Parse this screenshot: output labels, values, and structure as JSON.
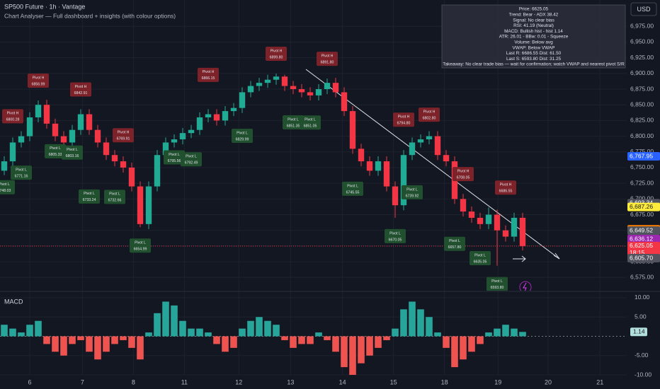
{
  "header": {
    "title": "SP500 Future · 1h · Vantage",
    "subtitle": "Chart Analyser — Full dashboard + insights (with colour options)",
    "currency": "USD"
  },
  "info_box": [
    "Price: 6625.05",
    "Trend: Bear - ADX 38.42",
    "Signal: No clear bias",
    "RSI: 41.19 (Neutral)",
    "MACD: Bullish hist - hist 1.14",
    "ATR: 26.01 - BBw: 0.01 - Squeeze",
    "Volume: Below avg",
    "VWAP: Below VWAP",
    "Last R: 6686.55 Dist: 61.50",
    "Last S: 6593.80 Dist: 31.25",
    "Takeaway: No clear trade bias — wait for confirmation; watch VWAP and nearest pivot S/R"
  ],
  "chart_data": [
    {
      "type": "candlestick",
      "grid": true,
      "up_color": "#22ab94",
      "down_color": "#f23645",
      "pivot_high_color": "#7e2229",
      "pivot_low_color": "#21502e",
      "xlim": [
        -0.5,
        73.25
      ],
      "xticks": [
        {
          "value": 3,
          "label": "6"
        },
        {
          "value": 9.2,
          "label": "7"
        },
        {
          "value": 15.2,
          "label": "8"
        },
        {
          "value": 21.2,
          "label": "11"
        },
        {
          "value": 27.6,
          "label": "12"
        },
        {
          "value": 33.7,
          "label": "13"
        },
        {
          "value": 39.8,
          "label": "14"
        },
        {
          "value": 45.8,
          "label": "15"
        },
        {
          "value": 51.8,
          "label": "18"
        },
        {
          "value": 58.1,
          "label": "19"
        },
        {
          "value": 64,
          "label": "20"
        },
        {
          "value": 70.1,
          "label": "21"
        }
      ],
      "ylim": [
        6555,
        7017
      ],
      "yticks": [
        {
          "value": 6575,
          "label": "6,575.00"
        },
        {
          "value": 6600,
          "label": "6,600.00"
        },
        {
          "value": 6625,
          "label": "6,625.00"
        },
        {
          "value": 6650,
          "label": "6,650.00"
        },
        {
          "value": 6675,
          "label": "6,675.00"
        },
        {
          "value": 6700,
          "label": "6,700.00"
        },
        {
          "value": 6725,
          "label": "6,725.00"
        },
        {
          "value": 6750,
          "label": "6,750.00"
        },
        {
          "value": 6775,
          "label": "6,775.00"
        },
        {
          "value": 6800,
          "label": "6,800.00"
        },
        {
          "value": 6825,
          "label": "6,825.00"
        },
        {
          "value": 6850,
          "label": "6,850.00"
        },
        {
          "value": 6875,
          "label": "6,875.00"
        },
        {
          "value": 6900,
          "label": "6,900.00"
        },
        {
          "value": 6925,
          "label": "6,925.00"
        },
        {
          "value": 6950,
          "label": "6,950.00"
        },
        {
          "value": 6975,
          "label": "6,975.00"
        }
      ],
      "open": [
        6745,
        6760,
        6790,
        6800,
        6830,
        6850,
        6820,
        6800,
        6790,
        6810,
        6835,
        6810,
        6790,
        6770,
        6760,
        6750,
        6720,
        6660,
        6720,
        6770,
        6790,
        6795,
        6805,
        6810,
        6830,
        6835,
        6825,
        6840,
        6845,
        6870,
        6880,
        6885,
        6890,
        6895,
        6880,
        6875,
        6870,
        6865,
        6875,
        6885,
        6870,
        6840,
        6780,
        6760,
        6745,
        6760,
        6720,
        6690,
        6770,
        6790,
        6795,
        6800,
        6770,
        6760,
        6700,
        6680,
        6670,
        6660,
        6675,
        6650,
        6640,
        6670
      ],
      "high": [
        6768,
        6798,
        6808,
        6838,
        6856.99,
        6858,
        6828,
        6808,
        6818,
        6842.91,
        6843,
        6818,
        6798,
        6778,
        6768,
        6758,
        6728,
        6728,
        6778,
        6798,
        6803,
        6813,
        6818,
        6838,
        6843,
        6843,
        6848,
        6853,
        6878,
        6888,
        6893,
        6898,
        6899.8,
        6898,
        6888,
        6883,
        6878,
        6883,
        6891.8,
        6893,
        6878,
        6848,
        6788,
        6768,
        6768,
        6768,
        6728,
        6778,
        6798,
        6803,
        6808,
        6808,
        6778,
        6768,
        6708,
        6688,
        6678,
        6686.55,
        6683,
        6658,
        6678,
        6678
      ],
      "low": [
        6738,
        6752,
        6782,
        6792,
        6822,
        6812,
        6792,
        6782,
        6782,
        6802,
        6802,
        6782,
        6762,
        6752,
        6742,
        6712,
        6654.99,
        6652,
        6712,
        6762,
        6782,
        6787,
        6797,
        6802,
        6822,
        6817,
        6817,
        6832,
        6837,
        6862,
        6872,
        6877,
        6882,
        6872,
        6867,
        6862,
        6857,
        6857,
        6867,
        6862,
        6832,
        6772,
        6752,
        6737,
        6737,
        6712,
        6670.05,
        6682,
        6762,
        6782,
        6787,
        6762,
        6752,
        6692,
        6672,
        6662,
        6652,
        6652,
        6593.8,
        6632,
        6632,
        6618
      ],
      "close": [
        6760,
        6790,
        6800,
        6830,
        6850,
        6820,
        6800,
        6790,
        6810,
        6835,
        6810,
        6790,
        6770,
        6760,
        6750,
        6720,
        6660,
        6720,
        6770,
        6790,
        6795,
        6805,
        6810,
        6830,
        6835,
        6825,
        6840,
        6845,
        6870,
        6880,
        6885,
        6890,
        6895,
        6880,
        6875,
        6870,
        6865,
        6875,
        6885,
        6870,
        6840,
        6780,
        6760,
        6745,
        6760,
        6720,
        6690,
        6770,
        6790,
        6795,
        6800,
        6770,
        6760,
        6700,
        6680,
        6670,
        6660,
        6675,
        6650,
        6640,
        6670,
        6625.05
      ],
      "pivots": [
        {
          "label": "Pivot L",
          "value": 6748.03,
          "value_label": "6748.03",
          "x": 0
        },
        {
          "label": "Pivot H",
          "value": 6800.28,
          "value_label": "6800.28",
          "x": 1
        },
        {
          "label": "Pivot L",
          "value": 6771.16,
          "value_label": "6771.16",
          "x": 2
        },
        {
          "label": "Pivot H",
          "value": 6856.99,
          "value_label": "6856.99",
          "x": 4
        },
        {
          "label": "Pivot L",
          "value": 6805.33,
          "value_label": "6805.33",
          "x": 6
        },
        {
          "label": "Pivot L",
          "value": 6803.16,
          "value_label": "6803.16",
          "x": 8
        },
        {
          "label": "Pivot H",
          "value": 6842.91,
          "value_label": "6842.91",
          "x": 9
        },
        {
          "label": "Pivot L",
          "value": 6733.24,
          "value_label": "6733.24",
          "x": 10
        },
        {
          "label": "Pivot L",
          "value": 6732.66,
          "value_label": "6732.66",
          "x": 13
        },
        {
          "label": "Pivot H",
          "value": 6769.91,
          "value_label": "6769.91",
          "x": 14
        },
        {
          "label": "Pivot L",
          "value": 6654.99,
          "value_label": "6654.99",
          "x": 16
        },
        {
          "label": "Pivot L",
          "value": 6795.56,
          "value_label": "6795.56",
          "x": 20
        },
        {
          "label": "Pivot L",
          "value": 6792.49,
          "value_label": "6792.49",
          "x": 22
        },
        {
          "label": "Pivot H",
          "value": 6866.15,
          "value_label": "6866.15",
          "x": 24
        },
        {
          "label": "Pivot L",
          "value": 6829.99,
          "value_label": "6829.99",
          "x": 28
        },
        {
          "label": "Pivot H",
          "value": 6899.8,
          "value_label": "6899.80",
          "x": 32
        },
        {
          "label": "Pivot L",
          "value": 6851.35,
          "value_label": "6851.35",
          "x": 34
        },
        {
          "label": "Pivot L",
          "value": 6851.05,
          "value_label": "6851.05",
          "x": 36
        },
        {
          "label": "Pivot H",
          "value": 6891.8,
          "value_label": "6891.80",
          "x": 38
        },
        {
          "label": "Pivot L",
          "value": 6745.55,
          "value_label": "6745.55",
          "x": 41
        },
        {
          "label": "Pivot L",
          "value": 6670.05,
          "value_label": "6670.05",
          "x": 46
        },
        {
          "label": "Pivot H",
          "value": 6794.8,
          "value_label": "6794.80",
          "x": 47
        },
        {
          "label": "Pivot L",
          "value": 6739.92,
          "value_label": "6739.92",
          "x": 48
        },
        {
          "label": "Pivot H",
          "value": 6802.8,
          "value_label": "6802.80",
          "x": 50
        },
        {
          "label": "Pivot L",
          "value": 6657.8,
          "value_label": "6657.80",
          "x": 53
        },
        {
          "label": "Pivot H",
          "value": 6708.05,
          "value_label": "6708.05",
          "x": 54
        },
        {
          "label": "Pivot L",
          "value": 6635.05,
          "value_label": "6635.05",
          "x": 56
        },
        {
          "label": "Pivot L",
          "value": 6593.8,
          "value_label": "6593.80",
          "x": 58
        },
        {
          "label": "Pivot H",
          "value": 6686.55,
          "value_label": "6686.55",
          "x": 59
        }
      ],
      "price_tags": [
        {
          "value": 6767.95,
          "label": "6,767.95",
          "color": "#2962ff"
        },
        {
          "value": 6693.34,
          "label": "6,693.34",
          "color": "#50535e"
        },
        {
          "value": 6687.26,
          "label": "6,687.26",
          "color": "#ffeb3b"
        },
        {
          "value": 6651.82,
          "label": "6,651.82",
          "color": "#f57c00"
        },
        {
          "value": 6649.52,
          "label": "6,649.52",
          "color": "#50535e"
        },
        {
          "value": 6636.12,
          "label": "6,636.12",
          "color": "#9c27b0"
        },
        {
          "value": 6625.05,
          "label": "6,625.05",
          "color": "#f23645",
          "countdown": "18:15"
        },
        {
          "value": 6605.7,
          "label": "6,605.70",
          "color": "#50535e"
        }
      ]
    },
    {
      "type": "bar",
      "title": "MACD",
      "positive_color": "#26a69a",
      "negative_color": "#ef5350",
      "ylim": [
        -10,
        11.1
      ],
      "yticks": [
        {
          "value": 10,
          "label": "10.00"
        },
        {
          "value": 5,
          "label": "5.00"
        },
        {
          "value": -5,
          "label": "-5.00"
        },
        {
          "value": -10,
          "label": "-10.00"
        }
      ],
      "values": [
        3,
        2,
        1,
        3,
        4,
        -2,
        -4,
        -5,
        -2,
        -1,
        -4,
        -6,
        -4,
        -2,
        -1,
        -3,
        -6,
        1,
        6,
        9,
        8,
        4,
        2,
        2,
        1,
        -2,
        -4,
        -3,
        2,
        4,
        5,
        4,
        3,
        -1,
        -3,
        -2,
        -2,
        1,
        -1,
        -4,
        -8,
        -10,
        -7,
        -5,
        -3,
        -1,
        2,
        7,
        9,
        7,
        5,
        1,
        -3,
        -8,
        -6,
        -4,
        -2,
        1,
        2,
        3,
        2,
        1.14
      ]
    }
  ]
}
